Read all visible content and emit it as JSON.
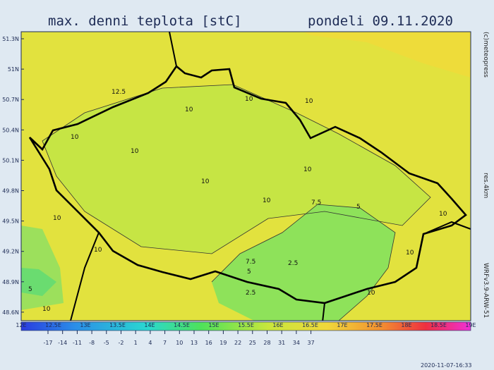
{
  "header": {
    "title": "max. denni teplota [stC]",
    "date": "pondeli 09.11.2020"
  },
  "map": {
    "lat_labels": [
      "51.3N",
      "51N",
      "50.7N",
      "50.4N",
      "50.1N",
      "49.8N",
      "49.5N",
      "49.2N",
      "48.9N",
      "48.6N"
    ],
    "lon_labels": [
      "12E",
      "12.5E",
      "13E",
      "13.5E",
      "14E",
      "14.5E",
      "15E",
      "15.5E",
      "16E",
      "16.5E",
      "17E",
      "17.5E",
      "18E",
      "18.5E",
      "19E"
    ],
    "contour_labels": [
      "12.5",
      "10",
      "10",
      "10",
      "10",
      "10",
      "10",
      "10",
      "10",
      "10",
      "10",
      "7.5",
      "5",
      "7.5",
      "5",
      "2.5",
      "2.5",
      "10",
      "10",
      "10",
      "5",
      "10"
    ]
  },
  "colorbar": {
    "ticks": [
      -17,
      -14,
      -11,
      -8,
      -5,
      -2,
      1,
      4,
      7,
      10,
      13,
      16,
      19,
      22,
      25,
      28,
      31,
      34,
      37
    ]
  },
  "credits": {
    "copyright": "(c)meteopress",
    "resolution": "res.4km",
    "model": "WRFv3.9-ARW-51",
    "run": "2020-11-07-16:33"
  }
}
